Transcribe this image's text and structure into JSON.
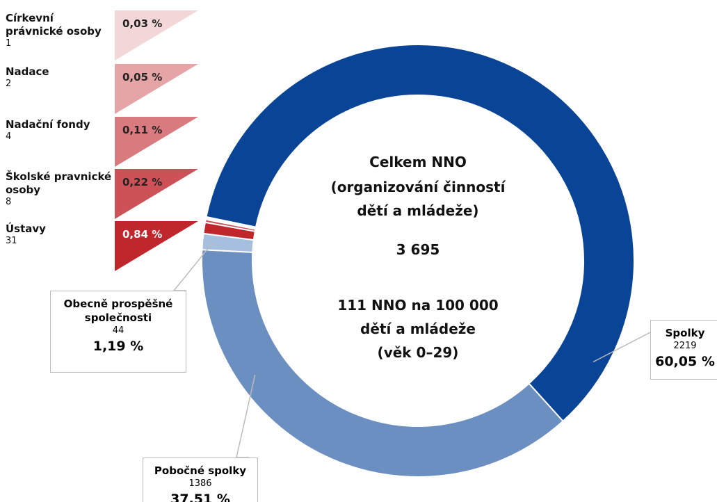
{
  "chart_data": {
    "type": "donut",
    "categories": [
      "Spolky",
      "Pobočné spolky",
      "Obecně prospěšné společnosti",
      "Ústavy",
      "Školské pravnické osoby",
      "Nadační fondy",
      "Nadace",
      "Církevní právnické osoby"
    ],
    "values": [
      2219,
      1386,
      44,
      31,
      8,
      4,
      2,
      1
    ],
    "percent_labels": [
      "60,05 %",
      "37,51 %",
      "1,19 %",
      "0,84 %",
      "0,22 %",
      "0,11 %",
      "0,05 %",
      "0,03 %"
    ],
    "colors": [
      "#0a4496",
      "#6b8fc0",
      "#a6bfdf",
      "#c0272d",
      "#cd5257",
      "#d97b7e",
      "#e5a5a7",
      "#f3d7d8"
    ],
    "center_lines": [
      "Celkem NNO",
      "(organizování činností",
      "dětí a mládeže)",
      "3 695",
      "111 NNO na 100 000",
      "dětí a mládeže",
      "(věk 0–29)"
    ]
  }
}
